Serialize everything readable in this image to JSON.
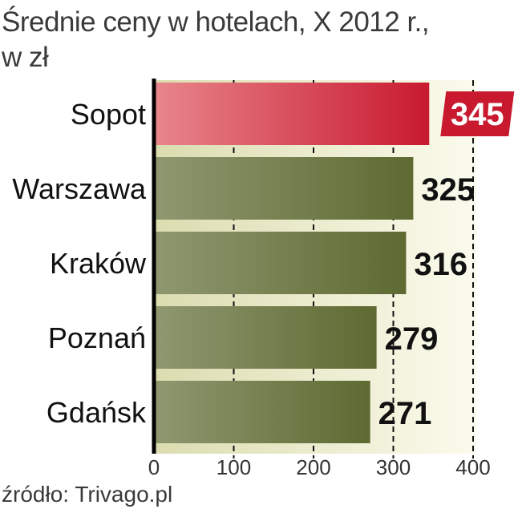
{
  "title_line1": "Średnie ceny w hotelach, X 2012 r.,",
  "title_line2": "w zł",
  "source": "źródło: Trivago.pl",
  "colors": {
    "bar": "#5e6a32",
    "bar_light": "#8f9870",
    "highlight": "#c8192f",
    "highlight_light": "#e8868c",
    "background_band": "#eeeed2"
  },
  "chart_data": {
    "type": "bar",
    "orientation": "horizontal",
    "title": "Średnie ceny w hotelach, X 2012 r., w zł",
    "categories": [
      "Sopot",
      "Warszawa",
      "Kraków",
      "Poznań",
      "Gdańsk"
    ],
    "values": [
      345,
      325,
      316,
      279,
      271
    ],
    "highlighted_category": "Sopot",
    "xlim": [
      0,
      400
    ],
    "x_ticks": [
      0,
      100,
      200,
      300,
      400
    ],
    "grid": "vertical dashed",
    "data_labels": true
  }
}
